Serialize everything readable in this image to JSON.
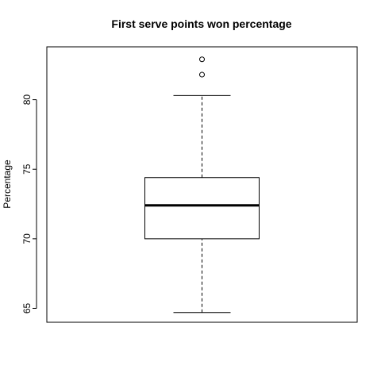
{
  "chart_data": {
    "type": "boxplot",
    "title": "First serve points won percentage",
    "xlabel": "",
    "ylabel": "Percentage",
    "ylim": [
      64,
      83.8
    ],
    "yticks": [
      65,
      70,
      75,
      80
    ],
    "grid": false,
    "legend": "none",
    "box": {
      "whisker_low": 64.7,
      "q1": 70.0,
      "median": 72.4,
      "q3": 74.4,
      "whisker_high": 80.3,
      "outliers": [
        81.8,
        82.9
      ]
    },
    "colors": {
      "box_fill": "#ffffff",
      "lines": "#000000"
    }
  }
}
